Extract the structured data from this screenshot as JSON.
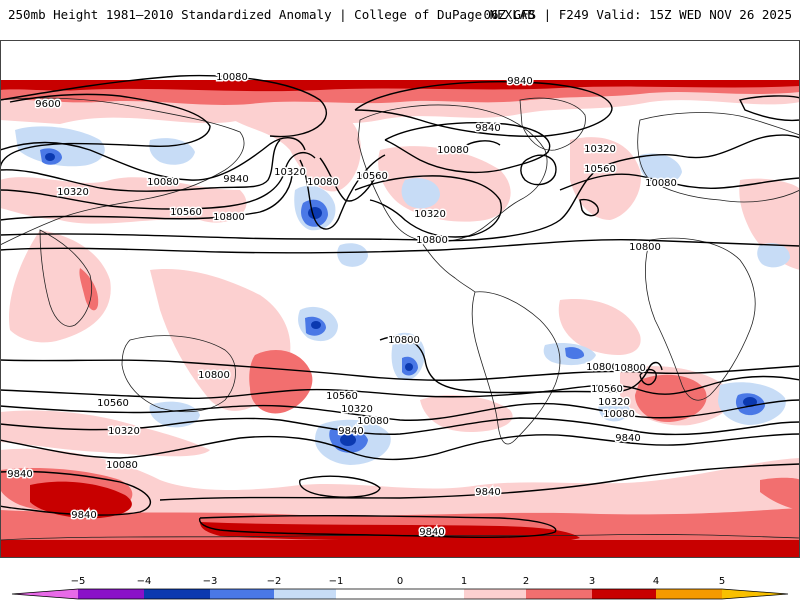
{
  "header": {
    "title_left": "250mb Height 1981–2010 Standardized Anomaly | College of DuPage NEXLAB",
    "title_right": "06Z GFS | F249 Valid: 15Z WED NOV 26 2025"
  },
  "colors": {
    "neg5": "#e86ae8",
    "neg4": "#8a12c8",
    "neg3": "#0b39b0",
    "neg2": "#4a78e6",
    "neg1": "#c7dcf6",
    "zero": "#ffffff",
    "pos1": "#fcd0d0",
    "pos2": "#f26f6f",
    "pos3": "#c80000",
    "pos4": "#f59a00",
    "pos5": "#f8c000",
    "contour": "#000000",
    "land": "#222222"
  },
  "colorbar": {
    "ticks": [
      "−5",
      "−4",
      "−3",
      "−2",
      "−1",
      "0",
      "1",
      "2",
      "3",
      "4",
      "5"
    ]
  },
  "contour_labels": [
    {
      "text": "10080"
    },
    {
      "text": "9840"
    },
    {
      "text": "9600"
    },
    {
      "text": "10320"
    },
    {
      "text": "10080"
    },
    {
      "text": "9840"
    },
    {
      "text": "10320"
    },
    {
      "text": "10080"
    },
    {
      "text": "10560"
    },
    {
      "text": "10560"
    },
    {
      "text": "10800"
    },
    {
      "text": "10320"
    },
    {
      "text": "10800"
    },
    {
      "text": "10080"
    },
    {
      "text": "9840"
    },
    {
      "text": "10320"
    },
    {
      "text": "10560"
    },
    {
      "text": "10080"
    },
    {
      "text": "10800"
    },
    {
      "text": "10800"
    },
    {
      "text": "10800"
    },
    {
      "text": "10800"
    },
    {
      "text": "10560"
    },
    {
      "text": "10560"
    },
    {
      "text": "10320"
    },
    {
      "text": "10080"
    },
    {
      "text": "9840"
    },
    {
      "text": "10320"
    },
    {
      "text": "10080"
    },
    {
      "text": "9840"
    },
    {
      "text": "10800"
    },
    {
      "text": "10560"
    },
    {
      "text": "10320"
    },
    {
      "text": "10080"
    },
    {
      "text": "9840"
    },
    {
      "text": "9840"
    },
    {
      "text": "9840"
    },
    {
      "text": "9840"
    }
  ]
}
